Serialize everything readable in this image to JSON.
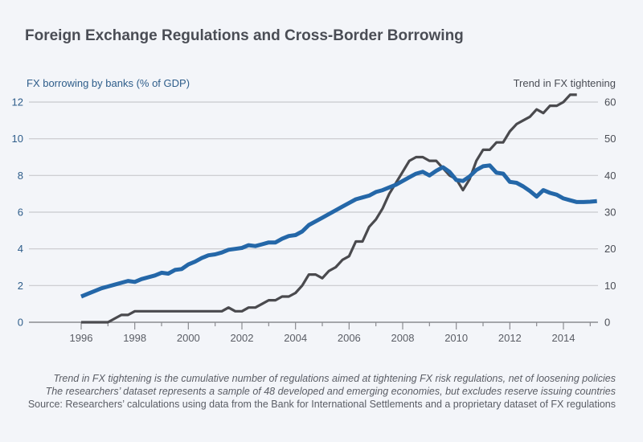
{
  "chart_data": {
    "type": "line",
    "title": "Foreign Exchange Regulations and Cross-Border Borrowing",
    "ylabel_left": "FX borrowing by banks (% of GDP)",
    "ylabel_right": "Trend in FX tightening",
    "ylim_left": [
      0,
      12
    ],
    "ylim_right": [
      0,
      60
    ],
    "yticks_left": [
      "0",
      "2",
      "4",
      "6",
      "8",
      "10",
      "12"
    ],
    "yticks_right": [
      "0",
      "10",
      "20",
      "30",
      "40",
      "50",
      "60"
    ],
    "xlim": [
      1994.5,
      2015.5
    ],
    "xticks": [
      "1996",
      "1998",
      "2000",
      "2002",
      "2004",
      "2006",
      "2008",
      "2010",
      "2012",
      "2014"
    ],
    "grid": true,
    "x_start": 1996,
    "x_step": 0.25,
    "series": [
      {
        "name": "FX borrowing by banks (% of GDP)",
        "axis": "left",
        "color": "#2467a8",
        "values": [
          1.4,
          1.55,
          1.7,
          1.85,
          1.95,
          2.05,
          2.15,
          2.25,
          2.2,
          2.35,
          2.45,
          2.55,
          2.7,
          2.65,
          2.85,
          2.9,
          3.15,
          3.3,
          3.5,
          3.65,
          3.7,
          3.8,
          3.95,
          4.0,
          4.05,
          4.2,
          4.15,
          4.25,
          4.35,
          4.35,
          4.55,
          4.7,
          4.75,
          4.95,
          5.3,
          5.5,
          5.7,
          5.9,
          6.1,
          6.3,
          6.5,
          6.7,
          6.8,
          6.9,
          7.1,
          7.2,
          7.35,
          7.5,
          7.7,
          7.9,
          8.1,
          8.2,
          8.0,
          8.25,
          8.45,
          8.2,
          7.75,
          7.7,
          7.95,
          8.3,
          8.5,
          8.55,
          8.15,
          8.1,
          7.65,
          7.6,
          7.4,
          7.15,
          6.85,
          7.2,
          7.05,
          6.95,
          6.75,
          6.65,
          6.55,
          6.55,
          6.57,
          6.6
        ]
      },
      {
        "name": "Trend in FX tightening",
        "axis": "right",
        "color": "#4a4a4e",
        "values": [
          0,
          0,
          0,
          0,
          0,
          1,
          2,
          2,
          3,
          3,
          3,
          3,
          3,
          3,
          3,
          3,
          3,
          3,
          3,
          3,
          3,
          3,
          4,
          3,
          3,
          4,
          4,
          5,
          6,
          6,
          7,
          7,
          8,
          10,
          13,
          13,
          12,
          14,
          15,
          17,
          18,
          22,
          22,
          26,
          28,
          31,
          35,
          38,
          41,
          44,
          45,
          45,
          44,
          44,
          42,
          40,
          39,
          36,
          39,
          44,
          47,
          47,
          49,
          49,
          52,
          54,
          55,
          56,
          58,
          57,
          59,
          59,
          60,
          62,
          62
        ]
      }
    ]
  },
  "notes": {
    "line1": "Trend in FX tightening is the cumulative number of regulations aimed at tightening FX risk regulations, net of loosening policies",
    "line2": "The researchers’ dataset represents a sample of 48 developed and emerging economies, but excludes reserve issuing countries",
    "source": "Source: Researchers’ calculations using data from the Bank for International Settlements and a proprietary dataset of FX regulations"
  }
}
